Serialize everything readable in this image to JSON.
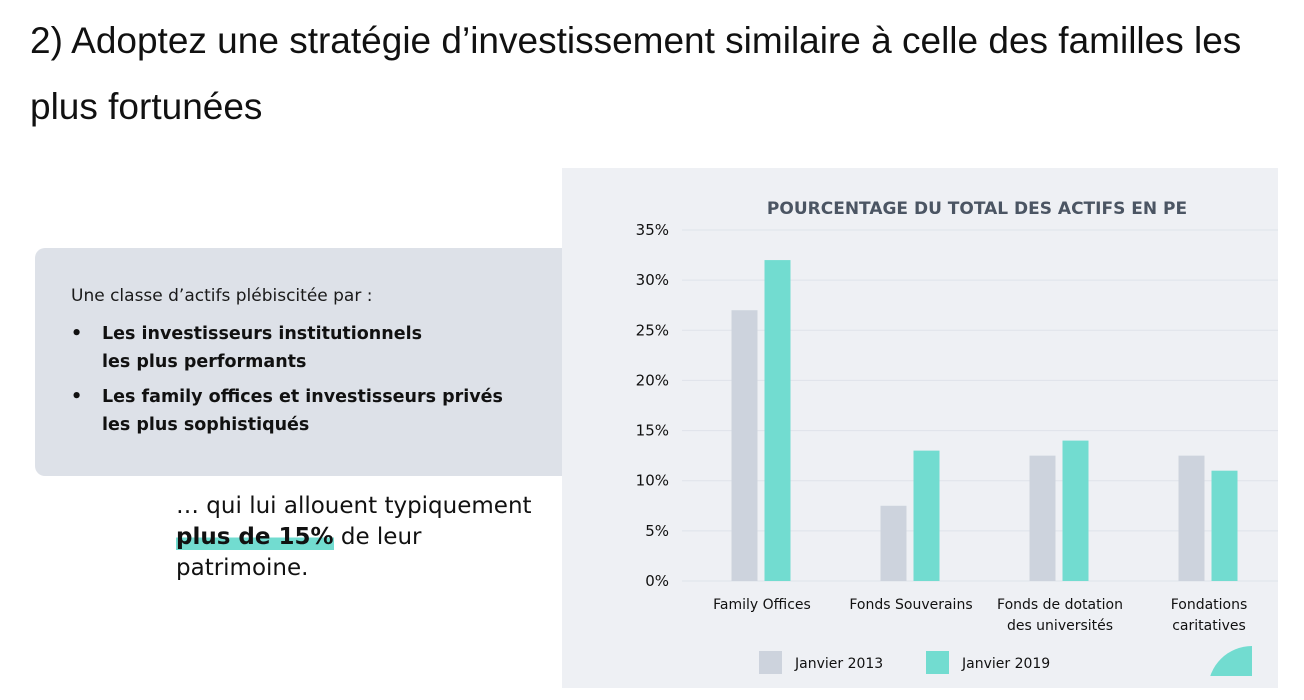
{
  "page": {
    "title": "2) Adoptez une stratégie d’investissement similaire à celle des familles les plus fortunées"
  },
  "info_box": {
    "intro": "Une classe d’actifs plébiscitée par :",
    "bullets": [
      {
        "line1": "Les investisseurs institutionnels",
        "line2": "les plus performants"
      },
      {
        "line1": "Les family offices et investisseurs privés",
        "line2": "les plus sophistiqués"
      }
    ],
    "bullet_symbol": "•"
  },
  "callout": {
    "line1": "… qui lui allouent typiquement",
    "highlight": "plus de 15%",
    "line2_rest": " de leur",
    "line3": "patrimoine.",
    "highlight_color": "#72dcd0"
  },
  "chart_data": {
    "type": "bar",
    "title": "POURCENTAGE DU TOTAL DES ACTIFS EN PE",
    "categories": [
      [
        "Family Offices"
      ],
      [
        "Fonds Souverains"
      ],
      [
        "Fonds de dotation",
        "des universités"
      ],
      [
        "Fondations",
        "caritatives"
      ]
    ],
    "series": [
      {
        "name": "Janvier 2013",
        "color": "#cdd3dd",
        "values": [
          27,
          7.5,
          12.5,
          12.5
        ]
      },
      {
        "name": "Janvier 2019",
        "color": "#72dcd0",
        "values": [
          32,
          13,
          14,
          11
        ]
      }
    ],
    "ylim": [
      0,
      35
    ],
    "yticks": [
      0,
      5,
      10,
      15,
      20,
      25,
      30,
      35
    ],
    "ytick_suffix": "%",
    "grid": true,
    "legend_position": "bottom"
  }
}
